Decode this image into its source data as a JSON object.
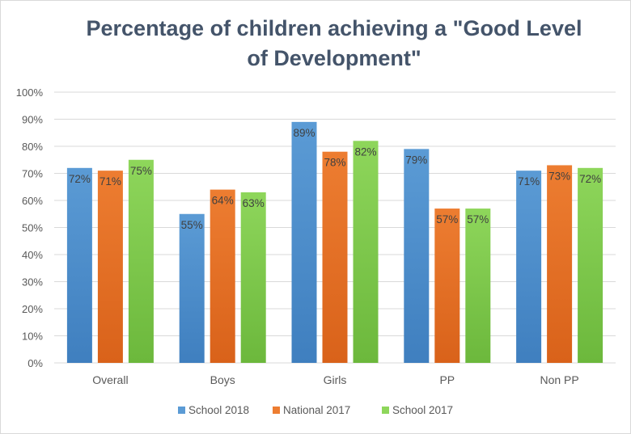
{
  "chart_data": {
    "type": "bar",
    "title_lines": [
      "Percentage of children achieving a \"Good Level",
      "of Development\""
    ],
    "categories": [
      "Overall",
      "Boys",
      "Girls",
      "PP",
      "Non PP"
    ],
    "series": [
      {
        "name": "School 2018",
        "values": [
          72,
          55,
          89,
          79,
          71
        ],
        "labels": [
          "72%",
          "55%",
          "89%",
          "79%",
          "71%"
        ],
        "color": "#5b9bd5",
        "color_dark": "#3f7fbf"
      },
      {
        "name": "National 2017",
        "values": [
          71,
          64,
          78,
          57,
          73
        ],
        "labels": [
          "71%",
          "64%",
          "78%",
          "57%",
          "73%"
        ],
        "color": "#ed7d31",
        "color_dark": "#d9621a"
      },
      {
        "name": "School 2017",
        "values": [
          75,
          63,
          82,
          57,
          72
        ],
        "labels": [
          "75%",
          "63%",
          "82%",
          "57%",
          "72%"
        ],
        "color": "#8ed65b",
        "color_dark": "#6cb83c"
      }
    ],
    "yticks": [
      "0%",
      "10%",
      "20%",
      "30%",
      "40%",
      "50%",
      "60%",
      "70%",
      "80%",
      "90%",
      "100%"
    ],
    "ylim": [
      0,
      100
    ],
    "grid": true,
    "legend_position": "bottom"
  }
}
